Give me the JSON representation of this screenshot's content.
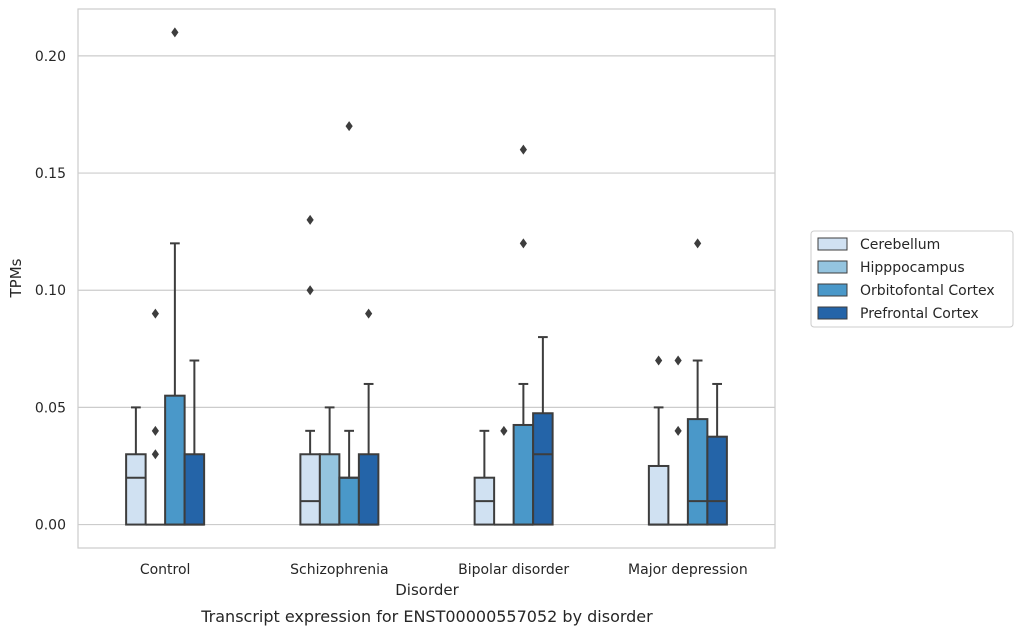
{
  "chart_data": {
    "type": "box",
    "title": "",
    "caption": "Transcript expression for ENST00000557052 by disorder",
    "xlabel": "Disorder",
    "ylabel": "TPMs",
    "ylim": [
      -0.01,
      0.22
    ],
    "yticks": [
      0.0,
      0.05,
      0.1,
      0.15,
      0.2
    ],
    "ytick_labels": [
      "0.00",
      "0.05",
      "0.10",
      "0.15",
      "0.20"
    ],
    "grid": "horizontal",
    "legend_position": "right, outside",
    "categories": [
      "Control",
      "Schizophrenia",
      "Bipolar disorder",
      "Major depression"
    ],
    "series": [
      {
        "name": "Cerebellum",
        "color": "#d0e1f2",
        "boxes": [
          {
            "whislo": 0.0,
            "q1": 0.0,
            "med": 0.02,
            "q3": 0.03,
            "whishi": 0.05,
            "fliers": []
          },
          {
            "whislo": 0.0,
            "q1": 0.0,
            "med": 0.01,
            "q3": 0.03,
            "whishi": 0.04,
            "fliers": [
              0.1,
              0.13
            ]
          },
          {
            "whislo": 0.0,
            "q1": 0.0,
            "med": 0.01,
            "q3": 0.02,
            "whishi": 0.04,
            "fliers": []
          },
          {
            "whislo": 0.0,
            "q1": 0.0,
            "med": 0.0,
            "q3": 0.025,
            "whishi": 0.05,
            "fliers": [
              0.07
            ]
          }
        ]
      },
      {
        "name": "Hipppocampus",
        "color": "#94c4df",
        "boxes": [
          {
            "whislo": 0.0,
            "q1": 0.0,
            "med": 0.0,
            "q3": 0.0,
            "whishi": 0.0,
            "fliers": [
              0.03,
              0.04,
              0.09
            ]
          },
          {
            "whislo": 0.0,
            "q1": 0.0,
            "med": 0.0,
            "q3": 0.03,
            "whishi": 0.05,
            "fliers": []
          },
          {
            "whislo": 0.0,
            "q1": 0.0,
            "med": 0.0,
            "q3": 0.0,
            "whishi": 0.0,
            "fliers": [
              0.04
            ]
          },
          {
            "whislo": 0.0,
            "q1": 0.0,
            "med": 0.0,
            "q3": 0.0,
            "whishi": 0.0,
            "fliers": [
              0.04,
              0.07
            ]
          }
        ]
      },
      {
        "name": "Orbitofontal Cortex",
        "color": "#4a98c9",
        "boxes": [
          {
            "whislo": 0.0,
            "q1": 0.0,
            "med": 0.0,
            "q3": 0.055,
            "whishi": 0.12,
            "fliers": [
              0.21
            ]
          },
          {
            "whislo": 0.0,
            "q1": 0.0,
            "med": 0.02,
            "q3": 0.02,
            "whishi": 0.04,
            "fliers": [
              0.17
            ]
          },
          {
            "whislo": 0.0,
            "q1": 0.0,
            "med": 0.0,
            "q3": 0.0425,
            "whishi": 0.06,
            "fliers": [
              0.12,
              0.16
            ]
          },
          {
            "whislo": 0.0,
            "q1": 0.0,
            "med": 0.01,
            "q3": 0.045,
            "whishi": 0.07,
            "fliers": [
              0.12
            ]
          }
        ]
      },
      {
        "name": "Prefrontal Cortex",
        "color": "#2464a8",
        "boxes": [
          {
            "whislo": 0.0,
            "q1": 0.0,
            "med": 0.0,
            "q3": 0.03,
            "whishi": 0.07,
            "fliers": []
          },
          {
            "whislo": 0.0,
            "q1": 0.0,
            "med": 0.0,
            "q3": 0.03,
            "whishi": 0.06,
            "fliers": [
              0.09
            ]
          },
          {
            "whislo": 0.0,
            "q1": 0.0,
            "med": 0.03,
            "q3": 0.0475,
            "whishi": 0.08,
            "fliers": []
          },
          {
            "whislo": 0.0,
            "q1": 0.0,
            "med": 0.01,
            "q3": 0.0375,
            "whishi": 0.06,
            "fliers": []
          }
        ]
      }
    ]
  },
  "colors": {
    "box_edge": "#3d3d3d",
    "grid": "#cccccc",
    "spine": "#cccccc",
    "text": "#262626"
  }
}
